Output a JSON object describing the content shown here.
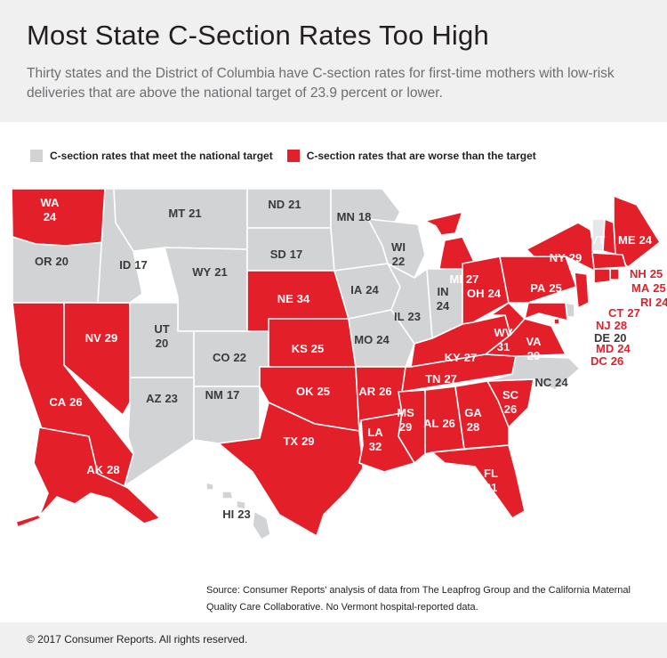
{
  "header": {
    "title": "Most State C-Section Rates Too High",
    "subtitle": "Thirty states and the District of Columbia have C-section rates for first-time mothers with low-risk deliveries that are above the national target of 23.9 percent or lower."
  },
  "legend": {
    "meet_label": "C-section rates that meet the national target",
    "worse_label": "C-section rates that are worse than the target"
  },
  "colors": {
    "meet": "#d1d3d4",
    "worse": "#e3202a",
    "no_data": "#e6e7e8"
  },
  "states": [
    {
      "code": "WA",
      "rate": "24",
      "status": "worse"
    },
    {
      "code": "OR",
      "rate": "20",
      "status": "meet"
    },
    {
      "code": "CA",
      "rate": "26",
      "status": "worse"
    },
    {
      "code": "NV",
      "rate": "29",
      "status": "worse"
    },
    {
      "code": "ID",
      "rate": "17",
      "status": "meet"
    },
    {
      "code": "MT",
      "rate": "21",
      "status": "meet"
    },
    {
      "code": "WY",
      "rate": "21",
      "status": "meet"
    },
    {
      "code": "UT",
      "rate": "20",
      "status": "meet"
    },
    {
      "code": "CO",
      "rate": "22",
      "status": "meet"
    },
    {
      "code": "AZ",
      "rate": "23",
      "status": "meet"
    },
    {
      "code": "NM",
      "rate": "17",
      "status": "meet"
    },
    {
      "code": "ND",
      "rate": "21",
      "status": "meet"
    },
    {
      "code": "SD",
      "rate": "17",
      "status": "meet"
    },
    {
      "code": "NE",
      "rate": "34",
      "status": "worse"
    },
    {
      "code": "KS",
      "rate": "25",
      "status": "worse"
    },
    {
      "code": "OK",
      "rate": "25",
      "status": "worse"
    },
    {
      "code": "TX",
      "rate": "29",
      "status": "worse"
    },
    {
      "code": "MN",
      "rate": "18",
      "status": "meet"
    },
    {
      "code": "IA",
      "rate": "24",
      "status": "meet"
    },
    {
      "code": "MO",
      "rate": "24",
      "status": "meet"
    },
    {
      "code": "AR",
      "rate": "26",
      "status": "worse"
    },
    {
      "code": "LA",
      "rate": "32",
      "status": "worse"
    },
    {
      "code": "WI",
      "rate": "22",
      "status": "meet"
    },
    {
      "code": "IL",
      "rate": "23",
      "status": "meet"
    },
    {
      "code": "MI",
      "rate": "27",
      "status": "worse"
    },
    {
      "code": "IN",
      "rate": "24",
      "status": "meet"
    },
    {
      "code": "OH",
      "rate": "24",
      "status": "worse"
    },
    {
      "code": "KY",
      "rate": "27",
      "status": "worse"
    },
    {
      "code": "TN",
      "rate": "27",
      "status": "worse"
    },
    {
      "code": "MS",
      "rate": "29",
      "status": "worse"
    },
    {
      "code": "AL",
      "rate": "26",
      "status": "worse"
    },
    {
      "code": "GA",
      "rate": "28",
      "status": "worse"
    },
    {
      "code": "FL",
      "rate": "31",
      "status": "worse"
    },
    {
      "code": "SC",
      "rate": "26",
      "status": "worse"
    },
    {
      "code": "NC",
      "rate": "24",
      "status": "meet"
    },
    {
      "code": "VA",
      "rate": "29",
      "status": "worse"
    },
    {
      "code": "WV",
      "rate": "31",
      "status": "worse"
    },
    {
      "code": "PA",
      "rate": "25",
      "status": "worse"
    },
    {
      "code": "NY",
      "rate": "29",
      "status": "worse"
    },
    {
      "code": "VT",
      "rate": "",
      "status": "no-data"
    },
    {
      "code": "NH",
      "rate": "25",
      "status": "worse"
    },
    {
      "code": "ME",
      "rate": "24",
      "status": "worse"
    },
    {
      "code": "MA",
      "rate": "25",
      "status": "worse"
    },
    {
      "code": "RI",
      "rate": "24",
      "status": "worse"
    },
    {
      "code": "CT",
      "rate": "27",
      "status": "worse"
    },
    {
      "code": "NJ",
      "rate": "28",
      "status": "worse"
    },
    {
      "code": "DE",
      "rate": "20",
      "status": "meet"
    },
    {
      "code": "MD",
      "rate": "24",
      "status": "worse"
    },
    {
      "code": "DC",
      "rate": "26",
      "status": "worse"
    },
    {
      "code": "AK",
      "rate": "28",
      "status": "worse"
    },
    {
      "code": "HI",
      "rate": "23",
      "status": "meet"
    }
  ],
  "source": "Source: Consumer Reports' analysis of data from The Leapfrog Group and the California Maternal Quality Care Collaborative. No Vermont hospital-reported data.",
  "footer": {
    "copyright": "© 2017 Consumer Reports. All rights reserved."
  }
}
